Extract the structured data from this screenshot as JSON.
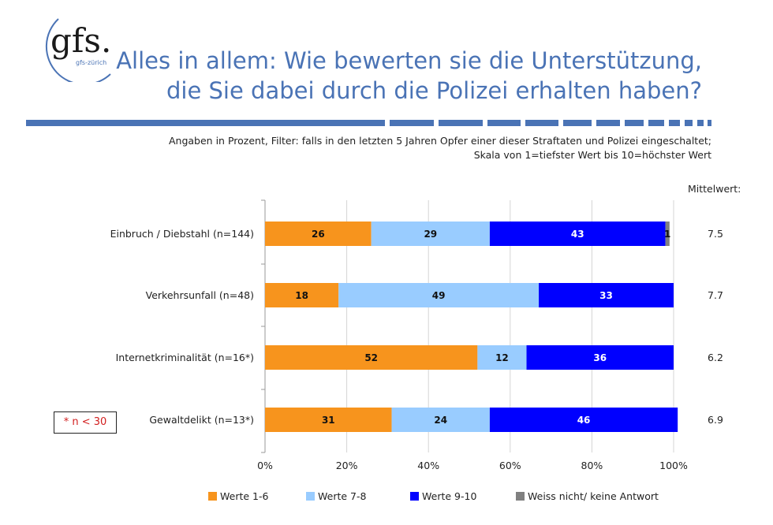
{
  "logo": {
    "text": "gfs.",
    "subtext": "gfs-zürich"
  },
  "header": {
    "title_line1": "Alles in allem: Wie bewerten sie die Unterstützung,",
    "title_line2": "die Sie dabei durch die Polizei erhalten haben?",
    "subtitle_line1": "Angaben in Prozent, Filter: falls in den letzten 5 Jahren Opfer einer dieser Straftaten und Polizei eingeschaltet;",
    "subtitle_line2": "Skala von 1=tiefster Wert bis 10=höchster Wert"
  },
  "mean_header": "Mittelwert:",
  "note": "* n < 30",
  "colors": {
    "title": "#4a73b5",
    "rule": "#4a73b5",
    "werte_1_6": "#f7941d",
    "werte_7_8": "#99ccff",
    "werte_9_10": "#0000ff",
    "weiss_nicht": "#808080",
    "note_text": "#d21e1e"
  },
  "chart_data": {
    "type": "bar",
    "orientation": "horizontal",
    "stacked": true,
    "categories": [
      "Einbruch / Diebstahl (n=144)",
      "Verkehrsunfall (n=48)",
      "Internetkriminalität (n=16*)",
      "Gewaltdelikt (n=13*)"
    ],
    "series": [
      {
        "name": "Werte 1-6",
        "color": "#f7941d",
        "values": [
          26,
          18,
          52,
          31
        ]
      },
      {
        "name": "Werte 7-8",
        "color": "#99ccff",
        "values": [
          29,
          49,
          12,
          24
        ]
      },
      {
        "name": "Werte 9-10",
        "color": "#0000ff",
        "values": [
          43,
          33,
          36,
          46
        ]
      },
      {
        "name": "Weiss nicht/ keine Antwort",
        "color": "#808080",
        "values": [
          1,
          0,
          0,
          0
        ]
      }
    ],
    "data_labels": [
      [
        "26",
        "29",
        "43",
        "1"
      ],
      [
        "18",
        "49",
        "33",
        ""
      ],
      [
        "52",
        "12",
        "36",
        ""
      ],
      [
        "31",
        "24",
        "46",
        ""
      ]
    ],
    "means": [
      "7.5",
      "7.7",
      "6.2",
      "6.9"
    ],
    "xticks": [
      "0%",
      "20%",
      "40%",
      "60%",
      "80%",
      "100%"
    ],
    "xlim": [
      0,
      100
    ],
    "grid": true,
    "legend_position": "bottom"
  }
}
